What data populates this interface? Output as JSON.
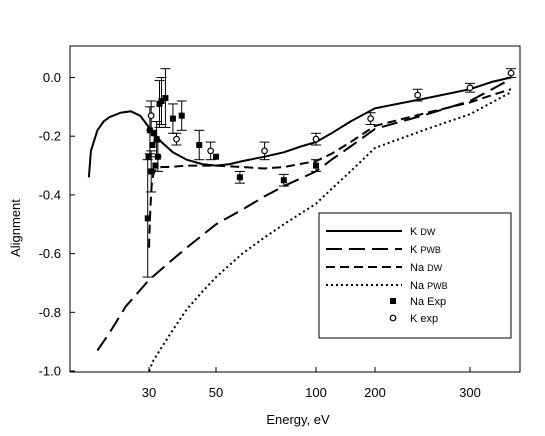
{
  "chart_data": {
    "type": "line",
    "xlabel": "Energy, eV",
    "ylabel": "Alignment",
    "x_scale": "nonlinear (approximately logarithmic)",
    "xlim": [
      18,
      420
    ],
    "ylim": [
      -1.0,
      0.1
    ],
    "x_ticks": [
      {
        "value": 30,
        "label": "30"
      },
      {
        "value": 50,
        "label": "50"
      },
      {
        "value": 100,
        "label": "100"
      },
      {
        "value": 200,
        "label": "200"
      },
      {
        "value": 300,
        "label": "300"
      }
    ],
    "y_ticks": [
      {
        "value": 0.0,
        "label": "0.0"
      },
      {
        "value": -0.2,
        "label": "-0.2"
      },
      {
        "value": -0.4,
        "label": "-0.4"
      },
      {
        "value": -0.6,
        "label": "-0.6"
      },
      {
        "value": -0.8,
        "label": "-0.8"
      },
      {
        "value": -1.0,
        "label": "-1.0"
      }
    ],
    "grid": false,
    "legend_position": "bottom-right",
    "series": [
      {
        "name": "K",
        "name_sub": "DW",
        "style": "solid",
        "color": "#000000",
        "x": [
          18.7,
          19,
          20,
          21,
          22,
          24,
          26,
          28,
          30,
          33,
          36,
          40,
          45,
          50,
          55,
          60,
          70,
          80,
          90,
          100,
          120,
          150,
          200,
          250,
          300,
          350,
          400
        ],
        "y": [
          -0.34,
          -0.25,
          -0.18,
          -0.15,
          -0.135,
          -0.12,
          -0.115,
          -0.13,
          -0.17,
          -0.22,
          -0.255,
          -0.28,
          -0.295,
          -0.3,
          -0.295,
          -0.285,
          -0.27,
          -0.255,
          -0.235,
          -0.22,
          -0.19,
          -0.15,
          -0.105,
          -0.07,
          -0.04,
          -0.015,
          0.0
        ]
      },
      {
        "name": "K",
        "name_sub": "PWB",
        "style": "long-dash",
        "color": "#000000",
        "x": [
          20,
          22,
          25,
          30,
          35,
          40,
          50,
          60,
          70,
          80,
          100,
          120,
          150,
          200,
          250,
          300,
          350,
          400
        ],
        "y": [
          -0.93,
          -0.87,
          -0.78,
          -0.69,
          -0.63,
          -0.58,
          -0.5,
          -0.45,
          -0.405,
          -0.37,
          -0.32,
          -0.28,
          -0.235,
          -0.175,
          -0.125,
          -0.08,
          -0.04,
          -0.005
        ]
      },
      {
        "name": "Na",
        "name_sub": "DW",
        "style": "short-dash",
        "color": "#000000",
        "x": [
          30.0,
          30.3,
          30.6,
          31,
          31.5,
          32,
          33,
          35,
          40,
          45,
          50,
          60,
          70,
          80,
          100,
          120,
          150,
          200,
          250,
          300,
          350,
          400
        ],
        "y": [
          -0.58,
          -0.45,
          -0.37,
          -0.33,
          -0.315,
          -0.31,
          -0.305,
          -0.305,
          -0.3,
          -0.3,
          -0.3,
          -0.305,
          -0.31,
          -0.305,
          -0.285,
          -0.26,
          -0.22,
          -0.165,
          -0.12,
          -0.085,
          -0.06,
          -0.04
        ]
      },
      {
        "name": "Na",
        "name_sub": "PWB",
        "style": "dotted",
        "color": "#000000",
        "x": [
          30,
          31,
          33,
          36,
          40,
          45,
          50,
          60,
          70,
          80,
          100,
          120,
          150,
          200,
          250,
          300,
          350,
          400
        ],
        "y": [
          -1.0,
          -0.965,
          -0.92,
          -0.86,
          -0.79,
          -0.73,
          -0.68,
          -0.6,
          -0.545,
          -0.5,
          -0.43,
          -0.38,
          -0.32,
          -0.24,
          -0.175,
          -0.125,
          -0.085,
          -0.05
        ]
      },
      {
        "name": "Na Exp",
        "style": "marker-filled-square",
        "color": "#000000",
        "points": [
          {
            "x": 29.7,
            "y": -0.48,
            "err": 0.2
          },
          {
            "x": 29.9,
            "y": -0.27,
            "err": 0.0
          },
          {
            "x": 30.2,
            "y": -0.18,
            "err": 0.08
          },
          {
            "x": 30.5,
            "y": -0.32,
            "err": 0.07
          },
          {
            "x": 30.8,
            "y": -0.23,
            "err": 0.0
          },
          {
            "x": 31.1,
            "y": -0.19,
            "err": 0.0
          },
          {
            "x": 31.5,
            "y": -0.3,
            "err": 0.0
          },
          {
            "x": 31.8,
            "y": -0.21,
            "err": 0.06
          },
          {
            "x": 32.1,
            "y": -0.27,
            "err": 0.05
          },
          {
            "x": 32.5,
            "y": -0.09,
            "err": 0.08
          },
          {
            "x": 33.0,
            "y": -0.08,
            "err": 0.08
          },
          {
            "x": 34.0,
            "y": -0.07,
            "err": 0.1
          },
          {
            "x": 36.0,
            "y": -0.14,
            "err": 0.05
          },
          {
            "x": 38.5,
            "y": -0.13,
            "err": 0.05
          },
          {
            "x": 44.0,
            "y": -0.23,
            "err": 0.05
          },
          {
            "x": 50.0,
            "y": -0.27,
            "err": 0.0
          },
          {
            "x": 59.0,
            "y": -0.34,
            "err": 0.02
          },
          {
            "x": 80.0,
            "y": -0.35,
            "err": 0.02
          },
          {
            "x": 100.0,
            "y": -0.3,
            "err": 0.02
          }
        ]
      },
      {
        "name": "K exp",
        "style": "marker-open-circle",
        "color": "#000000",
        "points": [
          {
            "x": 30.5,
            "y": -0.13,
            "err": 0.05
          },
          {
            "x": 37.0,
            "y": -0.21,
            "err": 0.02
          },
          {
            "x": 48.0,
            "y": -0.25,
            "err": 0.03
          },
          {
            "x": 70.0,
            "y": -0.25,
            "err": 0.03
          },
          {
            "x": 100.0,
            "y": -0.21,
            "err": 0.02
          },
          {
            "x": 190.0,
            "y": -0.14,
            "err": 0.02
          },
          {
            "x": 240.0,
            "y": -0.06,
            "err": 0.02
          },
          {
            "x": 300.0,
            "y": -0.035,
            "err": 0.015
          },
          {
            "x": 400.0,
            "y": 0.015,
            "err": 0.015
          }
        ]
      }
    ]
  }
}
